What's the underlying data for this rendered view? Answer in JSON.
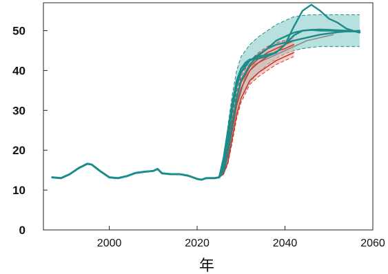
{
  "colors": {
    "teal": "#1c8c8a",
    "teal_band": "#7cc6c2",
    "red": "#c93a2c",
    "red_band": "#f0aaa2",
    "gray": "#8a8a8a",
    "axis": "#222222"
  },
  "chart_data": {
    "type": "line",
    "title": "",
    "xlabel": "年",
    "ylabel": "",
    "xlim": [
      1985,
      2060
    ],
    "ylim": [
      0,
      57
    ],
    "xticks": [
      2000,
      2020,
      2040,
      2060
    ],
    "yticks": [
      0,
      10,
      20,
      30,
      40,
      50
    ],
    "grid": false,
    "legend": "none",
    "series": [
      {
        "role": "historical",
        "color": "teal",
        "x": [
          1987,
          1989,
          1991,
          1993,
          1995,
          1996,
          1998,
          2000,
          2002,
          2004,
          2006,
          2008,
          2010,
          2011,
          2012,
          2014,
          2016,
          2018,
          2020,
          2021,
          2022,
          2024,
          2025
        ],
        "y": [
          13.2,
          13.0,
          14.0,
          15.5,
          16.6,
          16.4,
          14.7,
          13.2,
          13.0,
          13.5,
          14.3,
          14.6,
          14.8,
          15.3,
          14.2,
          14.0,
          14.0,
          13.6,
          12.8,
          12.6,
          13.0,
          13.0,
          13.2
        ]
      },
      {
        "role": "projection",
        "color": "teal",
        "x": [
          2025,
          2026,
          2027,
          2028,
          2029,
          2030,
          2032,
          2034,
          2036,
          2038,
          2040,
          2042,
          2044,
          2046,
          2048,
          2050,
          2052,
          2054,
          2056,
          2057
        ],
        "y": [
          13.2,
          16,
          22,
          30,
          36,
          39.5,
          42.5,
          44,
          45.5,
          46.5,
          47,
          47.5,
          48,
          48.5,
          49,
          49.3,
          49.6,
          49.8,
          49.9,
          50
        ]
      },
      {
        "role": "projection",
        "color": "teal",
        "x": [
          2025,
          2026,
          2027,
          2028,
          2029,
          2030,
          2031,
          2032,
          2033,
          2034,
          2036,
          2038,
          2040,
          2042,
          2044,
          2046,
          2048,
          2050,
          2052,
          2054,
          2056,
          2057
        ],
        "y": [
          13.2,
          18,
          25,
          32,
          37.5,
          40.5,
          42,
          42.8,
          42.8,
          43,
          43.6,
          44.5,
          46.5,
          51,
          55,
          56.5,
          55,
          53,
          52,
          50.5,
          49.8,
          49.5
        ]
      },
      {
        "role": "projection",
        "color": "teal",
        "x": [
          2025,
          2026,
          2027,
          2028,
          2029,
          2030,
          2031,
          2032,
          2034,
          2036,
          2038,
          2040,
          2042,
          2044,
          2046,
          2048,
          2050,
          2052,
          2054,
          2056,
          2057
        ],
        "y": [
          13.2,
          17,
          24,
          31,
          36.5,
          39.5,
          41.5,
          42.5,
          43.5,
          44,
          44.5,
          46.5,
          48.8,
          50,
          50.2,
          50.3,
          50.2,
          50.1,
          50,
          49.8,
          49.6
        ]
      },
      {
        "role": "projection",
        "color": "teal",
        "x": [
          2025,
          2026,
          2027,
          2028,
          2029,
          2030,
          2032,
          2034,
          2036,
          2038,
          2040,
          2042,
          2044,
          2046,
          2048,
          2050,
          2052,
          2054,
          2056,
          2057
        ],
        "y": [
          13.2,
          14.5,
          19,
          26,
          33,
          37.5,
          41.5,
          43.8,
          45.5,
          47.5,
          48.5,
          49.5,
          50,
          50.2,
          50,
          50,
          49.9,
          49.8,
          49.8,
          49.6
        ]
      },
      {
        "role": "projection",
        "color": "red",
        "x": [
          2025,
          2026,
          2027,
          2028,
          2029,
          2030,
          2032,
          2034,
          2036,
          2038,
          2040,
          2042
        ],
        "y": [
          13.2,
          14.5,
          18.5,
          25,
          31.5,
          35.5,
          40,
          42,
          43.5,
          44.8,
          45.5,
          46.5
        ]
      },
      {
        "role": "projection",
        "color": "red",
        "x": [
          2025,
          2026,
          2027,
          2028,
          2029,
          2030,
          2032,
          2034,
          2036,
          2038,
          2040,
          2042
        ],
        "y": [
          13.2,
          15,
          20,
          27,
          33,
          37,
          41,
          43,
          44.5,
          45.5,
          46.5,
          47.5
        ]
      },
      {
        "role": "projection",
        "color": "red",
        "x": [
          2025,
          2026,
          2027,
          2028,
          2029,
          2030,
          2032,
          2034,
          2036,
          2038,
          2040,
          2042
        ],
        "y": [
          13.2,
          14,
          17,
          23,
          29,
          33,
          37.5,
          39.5,
          41,
          42.5,
          43.5,
          44.5
        ]
      },
      {
        "role": "projection",
        "color": "gray",
        "x": [
          2025,
          2027,
          2029,
          2031,
          2033,
          2035,
          2037,
          2039,
          2041,
          2043,
          2045,
          2047,
          2049,
          2051
        ],
        "y": [
          13.2,
          19,
          31,
          38.5,
          41.5,
          42.5,
          43.5,
          44.5,
          45.5,
          46.5,
          47.5,
          48,
          48.5,
          49
        ]
      }
    ],
    "bands": [
      {
        "color": "teal_band",
        "x": [
          2025,
          2026,
          2027,
          2028,
          2029,
          2030,
          2032,
          2034,
          2036,
          2038,
          2040,
          2042,
          2044,
          2046,
          2048,
          2050,
          2052,
          2054,
          2056,
          2057
        ],
        "low": [
          13.2,
          14,
          17,
          23,
          29,
          33,
          37,
          39.5,
          41.5,
          43,
          44.2,
          45,
          45.5,
          45.8,
          46,
          46,
          46,
          46,
          46,
          46
        ],
        "high": [
          13.2,
          18,
          26,
          34,
          40,
          43.5,
          46.5,
          48.5,
          50,
          51.5,
          52.5,
          53.5,
          53.8,
          54,
          54,
          54,
          54,
          54,
          54,
          54
        ]
      },
      {
        "color": "red_band",
        "x": [
          2025,
          2026,
          2027,
          2028,
          2029,
          2030,
          2032,
          2034,
          2036,
          2038,
          2040,
          2042
        ],
        "low": [
          13.2,
          14,
          16.5,
          22,
          28,
          32,
          36.5,
          38.5,
          40,
          41.5,
          42.5,
          43.5
        ],
        "high": [
          13.2,
          15.5,
          21,
          28.5,
          34.5,
          38.5,
          42.5,
          44.5,
          46,
          47,
          47.5,
          48.5
        ]
      }
    ]
  }
}
